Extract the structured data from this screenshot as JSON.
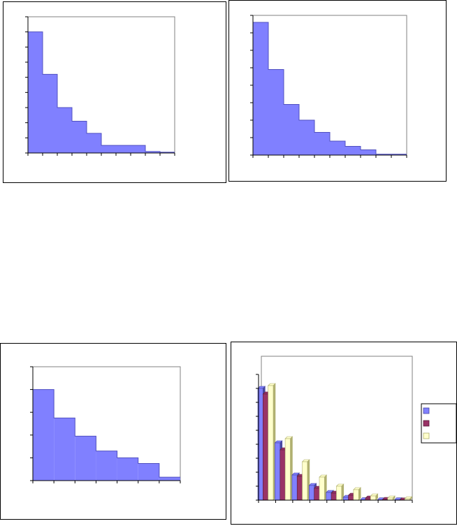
{
  "colors": {
    "blue": "#8080ff",
    "plum": "#993366",
    "cream": "#ffffcc",
    "axis": "#000000",
    "plot_border": "#808080"
  },
  "chart_data": [
    {
      "type": "bar",
      "style": "step-histogram",
      "title": "",
      "xlabel": "",
      "ylabel": "",
      "ylim": [
        0,
        9
      ],
      "grid": false,
      "values": [
        8,
        5.2,
        3,
        2.1,
        1.3,
        0.5,
        0.5,
        0.5,
        0.1,
        0.05
      ]
    },
    {
      "type": "bar",
      "style": "step-histogram",
      "title": "",
      "xlabel": "",
      "ylabel": "",
      "ylim": [
        0,
        8
      ],
      "grid": false,
      "values": [
        7.6,
        4.9,
        2.9,
        2.0,
        1.3,
        0.8,
        0.5,
        0.3,
        0.05,
        0.05
      ]
    },
    {
      "type": "bar",
      "style": "step-histogram",
      "title": "",
      "xlabel": "",
      "ylabel": "",
      "ylim": [
        0,
        5
      ],
      "grid": false,
      "values": [
        4,
        2.75,
        1.95,
        1.3,
        1.0,
        0.75,
        0.15
      ]
    },
    {
      "type": "bar",
      "style": "grouped-3d-columns",
      "title": "",
      "xlabel": "",
      "ylabel": "",
      "ylim": [
        0,
        9
      ],
      "grid": false,
      "legend": "right",
      "series": [
        {
          "values": [
            8.0,
            4.1,
            1.8,
            1.05,
            0.55,
            0.2,
            0.03,
            0.02,
            0.02
          ]
        },
        {
          "values": [
            7.6,
            3.6,
            1.7,
            0.85,
            0.5,
            0.35,
            0.15,
            0.05,
            0.01
          ]
        },
        {
          "values": [
            8.2,
            4.4,
            2.75,
            1.65,
            1.0,
            0.75,
            0.3,
            0.15,
            0.1
          ]
        }
      ]
    }
  ]
}
